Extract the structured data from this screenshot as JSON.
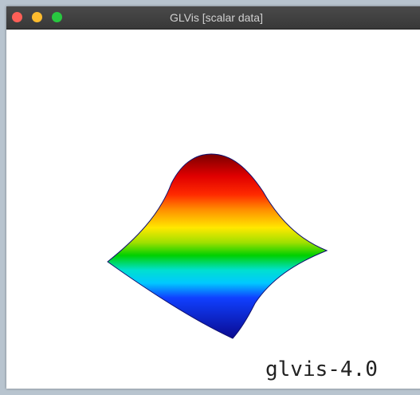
{
  "window": {
    "title": "GLVis [scalar data]"
  },
  "canvas": {
    "watermark": "glvis-4.0"
  }
}
